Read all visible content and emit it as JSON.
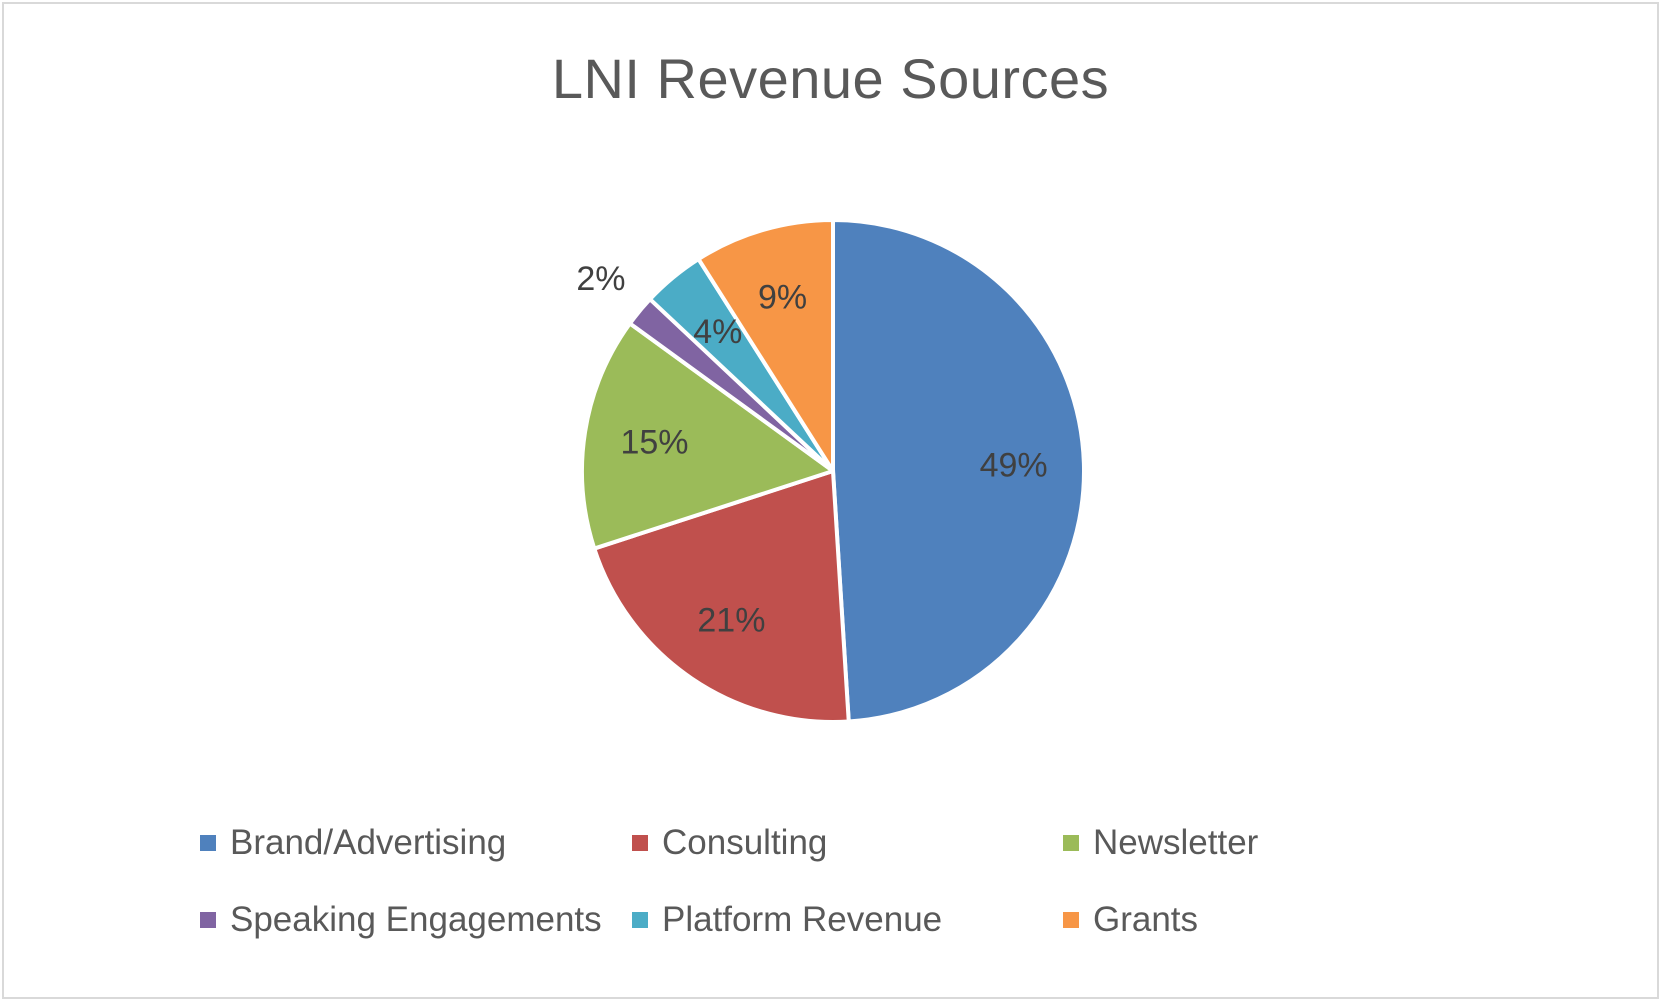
{
  "chart_data": {
    "type": "pie",
    "title": "LNI Revenue Sources",
    "categories": [
      "Brand/Advertising",
      "Consulting",
      "Newsletter",
      "Speaking Engagements",
      "Platform Revenue",
      "Grants"
    ],
    "values": [
      49,
      21,
      15,
      2,
      4,
      9
    ],
    "labels": [
      "49%",
      "21%",
      "15%",
      "2%",
      "4%",
      "9%"
    ],
    "colors": [
      "#4f81bd",
      "#c0504d",
      "#9bbb59",
      "#8064a2",
      "#4bacc6",
      "#f79646"
    ],
    "legend_position": "bottom",
    "start_angle_deg": 0,
    "direction": "clockwise"
  }
}
